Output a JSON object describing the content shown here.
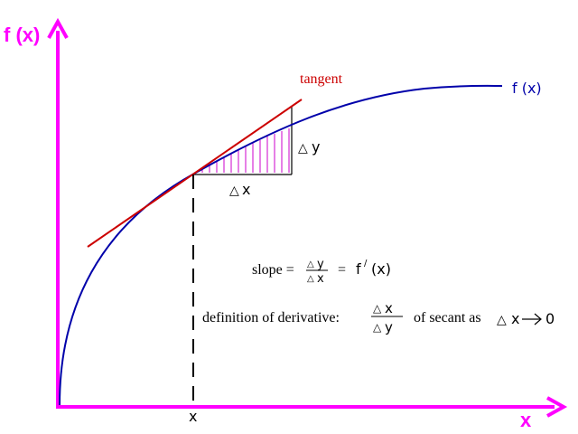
{
  "axes": {
    "y_label": "f (x)",
    "x_label": "x",
    "color": "#ff00ff"
  },
  "curve": {
    "label": "f (x)",
    "color": "#0000aa"
  },
  "tangent": {
    "label": "tangent",
    "color": "#cc0000"
  },
  "point": {
    "x_label": "x"
  },
  "deltas": {
    "dy_label": "y",
    "dx_label": "x",
    "hatch_color": "#cc00cc"
  },
  "annotations": {
    "slope_prefix": "slope =",
    "slope_num": "y",
    "slope_den": "x",
    "slope_eq": "=",
    "slope_f": "f",
    "slope_prime": "/",
    "slope_arg": "(x)",
    "definition_prefix": "definition of derivative:",
    "definition_num": "x",
    "definition_den": "y",
    "definition_suffix": "of secant as",
    "definition_limit_var": "x",
    "definition_limit_value": "0",
    "delta_symbol": "△"
  }
}
